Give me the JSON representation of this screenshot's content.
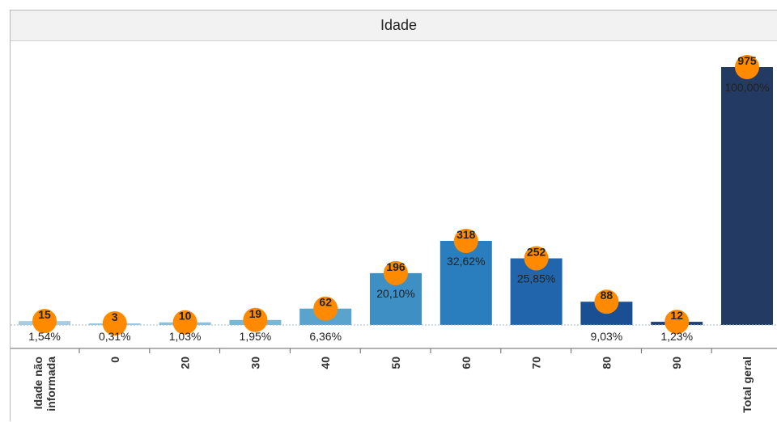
{
  "chart_data": {
    "type": "bar",
    "title": "Idade",
    "categories": [
      "Idade não informada",
      "0",
      "20",
      "30",
      "40",
      "50",
      "60",
      "70",
      "80",
      "90",
      "Total geral"
    ],
    "values": [
      15,
      3,
      10,
      19,
      62,
      196,
      318,
      252,
      88,
      12,
      975
    ],
    "percent_labels": [
      "1,54%",
      "0,31%",
      "1,03%",
      "1,95%",
      "6,36%",
      "20,10%",
      "32,62%",
      "25,85%",
      "9,03%",
      "1,23%",
      "100,00%"
    ],
    "ylim": [
      0,
      1000
    ],
    "grid": false,
    "legend": "none",
    "marker_color": "#ff8a00",
    "bar_colors": [
      "#a8cde3",
      "#9cc8e0",
      "#8cc0dc",
      "#7ab6d6",
      "#5aa3cc",
      "#3d8fc4",
      "#2a7ebd",
      "#2166ad",
      "#1b4f93",
      "#1f3f75",
      "#233a63"
    ]
  }
}
